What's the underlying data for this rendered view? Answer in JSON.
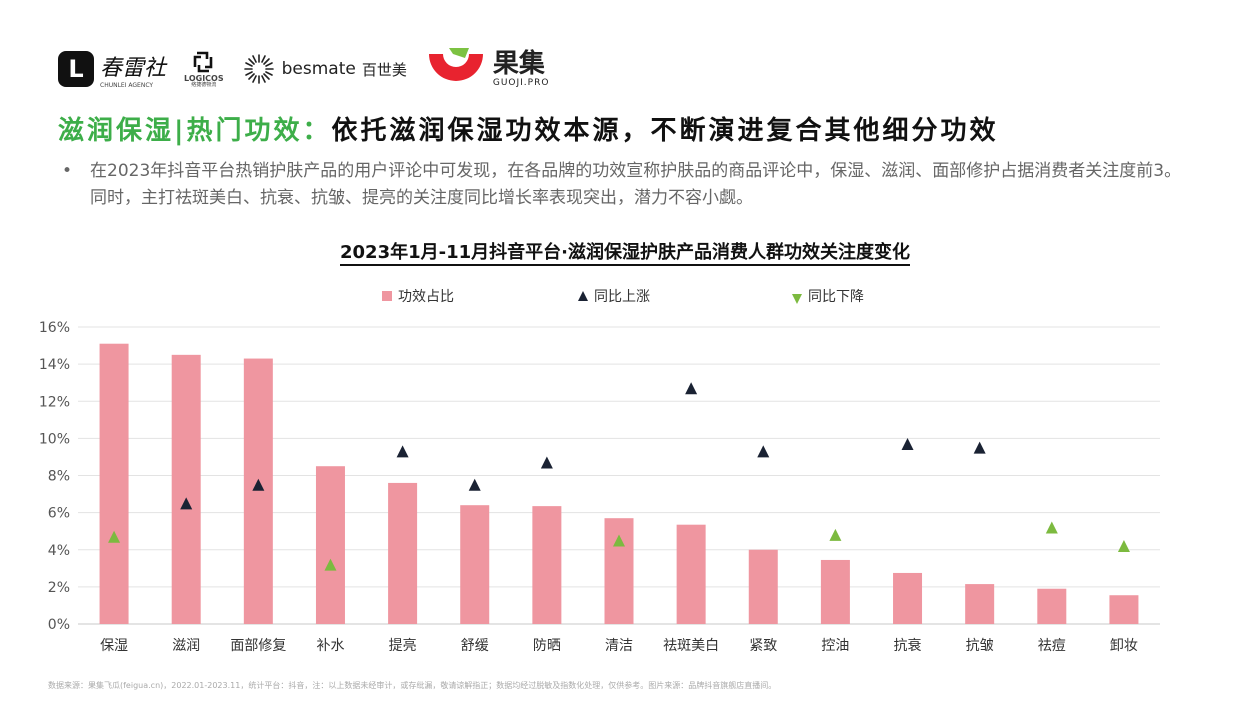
{
  "logos": {
    "chunlei_cn": "春雷社",
    "chunlei_en": "CHUNLEI AGENCY",
    "logicos_en": "LOGICOS",
    "logicos_cn": "络捷德物流",
    "besmate_en": "besmate",
    "besmate_cn": "百世美",
    "guoji_cn": "果集",
    "guoji_en": "GUOJI.PRO"
  },
  "headline": {
    "green": "滋润保湿|热门功效：",
    "dark": "依托滋润保湿功效本源，不断演进复合其他细分功效"
  },
  "bullet": {
    "symbol": "•",
    "text": "在2023年抖音平台热销护肤产品的用户评论中可发现，在各品牌的功效宣称护肤品的商品评论中，保湿、滋润、面部修护占据消费者关注度前3。同时，主打祛斑美白、抗衰、抗皱、提亮的关注度同比增长率表现突出，潜力不容小觑。"
  },
  "chart_data": {
    "type": "bar",
    "title": "2023年1月-11月抖音平台·滋润保湿护肤产品消费人群功效关注度变化",
    "categories": [
      "保湿",
      "滋润",
      "面部修复",
      "补水",
      "提亮",
      "舒缓",
      "防晒",
      "清洁",
      "祛斑美白",
      "紧致",
      "控油",
      "抗衰",
      "抗皱",
      "祛痘",
      "卸妆"
    ],
    "series": [
      {
        "name": "功效占比",
        "kind": "bar",
        "color": "#ef96a0",
        "values": [
          15.1,
          14.5,
          14.3,
          8.5,
          7.6,
          6.4,
          6.35,
          5.7,
          5.35,
          4.0,
          3.45,
          2.75,
          2.15,
          1.9,
          1.55
        ]
      },
      {
        "name": "同比上涨",
        "kind": "marker-up",
        "color": "#1a2233",
        "values": [
          null,
          6.5,
          7.5,
          null,
          9.3,
          7.5,
          8.7,
          null,
          12.7,
          9.3,
          null,
          9.7,
          9.5,
          null,
          null
        ]
      },
      {
        "name": "同比下降",
        "kind": "marker-down",
        "color": "#7cba3f",
        "values": [
          4.7,
          null,
          null,
          3.2,
          null,
          null,
          null,
          4.5,
          null,
          null,
          4.8,
          null,
          null,
          5.2,
          4.2
        ]
      }
    ],
    "ylim": [
      0,
      16
    ],
    "yticks": [
      "0%",
      "2%",
      "4%",
      "6%",
      "8%",
      "10%",
      "12%",
      "14%",
      "16%"
    ],
    "grid": true,
    "legend_position": "top-center"
  },
  "footer": "数据来源：果集飞瓜(feigua.cn)，2022.01-2023.11，统计平台：抖音，注：以上数据未经审计，或存纰漏，敬请谅解指正；数据均经过脱敏及指数化处理，仅供参考。图片来源：品牌抖音旗舰店直播间。"
}
